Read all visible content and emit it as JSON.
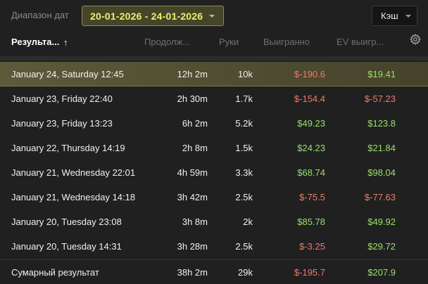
{
  "filter": {
    "date_label": "Диапазон дат",
    "date_range": "20-01-2026 - 24-01-2026",
    "cache_label": "Кэш"
  },
  "columns": {
    "result": "Результа...",
    "sort_arrow": "↑",
    "duration": "Продолж...",
    "hands": "Руки",
    "won": "Выигранно",
    "ev": "EV выигр..."
  },
  "rows": [
    {
      "date": "January 24, Saturday 12:45",
      "duration": "12h 2m",
      "hands": "10k",
      "won": "$-190.6",
      "ev": "$19.41"
    },
    {
      "date": "January 23, Friday 22:40",
      "duration": "2h 30m",
      "hands": "1.7k",
      "won": "$-154.4",
      "ev": "$-57.23"
    },
    {
      "date": "January 23, Friday 13:23",
      "duration": "6h 2m",
      "hands": "5.2k",
      "won": "$49.23",
      "ev": "$123.8"
    },
    {
      "date": "January 22, Thursday 14:19",
      "duration": "2h 8m",
      "hands": "1.5k",
      "won": "$24.23",
      "ev": "$21.84"
    },
    {
      "date": "January 21, Wednesday 22:01",
      "duration": "4h 59m",
      "hands": "3.3k",
      "won": "$68.74",
      "ev": "$98.04"
    },
    {
      "date": "January 21, Wednesday 14:18",
      "duration": "3h 42m",
      "hands": "2.5k",
      "won": "$-75.5",
      "ev": "$-77.63"
    },
    {
      "date": "January 20, Tuesday 23:08",
      "duration": "3h 8m",
      "hands": "2k",
      "won": "$85.78",
      "ev": "$49.92"
    },
    {
      "date": "January 20, Tuesday 14:31",
      "duration": "3h 28m",
      "hands": "2.5k",
      "won": "$-3.25",
      "ev": "$29.72"
    }
  ],
  "total": {
    "label": "Сумарный результат",
    "duration": "38h 2m",
    "hands": "29k",
    "won": "$-195.7",
    "ev": "$207.9"
  },
  "colors": {
    "positive": "#9be06a",
    "negative": "#ef7b6a",
    "accent": "#f0ee6e"
  },
  "icons": {
    "settings": "gear-icon",
    "dropdown": "chevron-down-icon",
    "sort": "arrow-up-icon"
  }
}
